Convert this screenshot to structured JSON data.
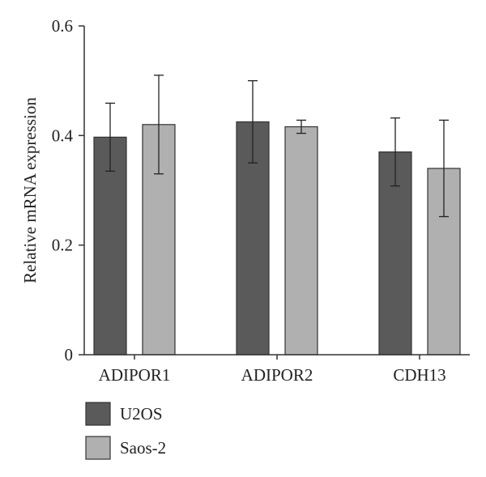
{
  "chart_data": {
    "type": "bar",
    "title": "",
    "xlabel": "",
    "ylabel": "Relative mRNA expression",
    "ylim": [
      0,
      0.6
    ],
    "yticks": [
      {
        "value": 0,
        "label": "0"
      },
      {
        "value": 0.2,
        "label": "0.2"
      },
      {
        "value": 0.4,
        "label": "0.4"
      },
      {
        "value": 0.6,
        "label": "0.6"
      }
    ],
    "categories": [
      "ADIPOR1",
      "ADIPOR2",
      "CDH13"
    ],
    "series": [
      {
        "name": "U2OS",
        "color": "#5a5a5a",
        "values": [
          0.397,
          0.425,
          0.37
        ],
        "errors": [
          0.062,
          0.075,
          0.062
        ]
      },
      {
        "name": "Saos-2",
        "color": "#b0b0b0",
        "values": [
          0.42,
          0.416,
          0.34
        ],
        "errors": [
          0.09,
          0.012,
          0.088
        ]
      }
    ],
    "grid": false,
    "legend_position": "bottom-left"
  }
}
